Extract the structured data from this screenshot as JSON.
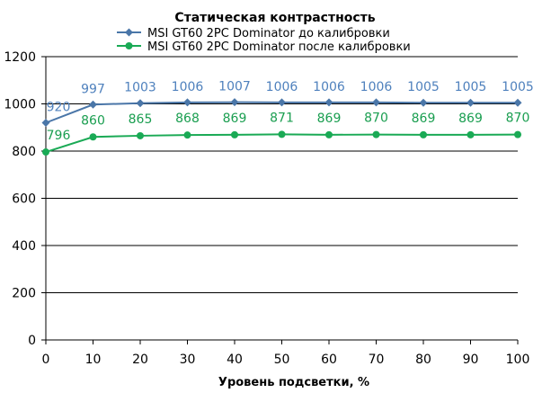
{
  "chart_data": {
    "type": "line",
    "title": "Статическая контрастность",
    "xlabel": "Уровень подсветки, %",
    "ylabel": "",
    "x": [
      0,
      10,
      20,
      30,
      40,
      50,
      60,
      70,
      80,
      90,
      100
    ],
    "xlim": [
      0,
      100
    ],
    "ylim": [
      0,
      1200
    ],
    "xticks": [
      "0",
      "10",
      "20",
      "30",
      "40",
      "50",
      "60",
      "70",
      "80",
      "90",
      "100"
    ],
    "yticks": [
      "0",
      "200",
      "400",
      "600",
      "800",
      "1000",
      "1200"
    ],
    "grid": "horizontal",
    "legend_position": "top",
    "series": [
      {
        "name": "MSI GT60  2PC Dominator  до калибровки",
        "values": [
          920,
          997,
          1003,
          1006,
          1007,
          1006,
          1006,
          1006,
          1005,
          1005,
          1005
        ],
        "labels": [
          "920",
          "997",
          "1003",
          "1006",
          "1007",
          "1006",
          "1006",
          "1006",
          "1005",
          "1005",
          "1005"
        ],
        "color": "#4a76a8",
        "label_color": "#4f81bd",
        "marker": "diamond"
      },
      {
        "name": "MSI GT60  2PC Dominator  после калибровки",
        "values": [
          796,
          860,
          865,
          868,
          869,
          871,
          869,
          870,
          869,
          869,
          870
        ],
        "labels": [
          "796",
          "860",
          "865",
          "868",
          "869",
          "871",
          "869",
          "870",
          "869",
          "869",
          "870"
        ],
        "color": "#1aaa55",
        "label_color": "#1a9e50",
        "marker": "circle"
      }
    ]
  }
}
